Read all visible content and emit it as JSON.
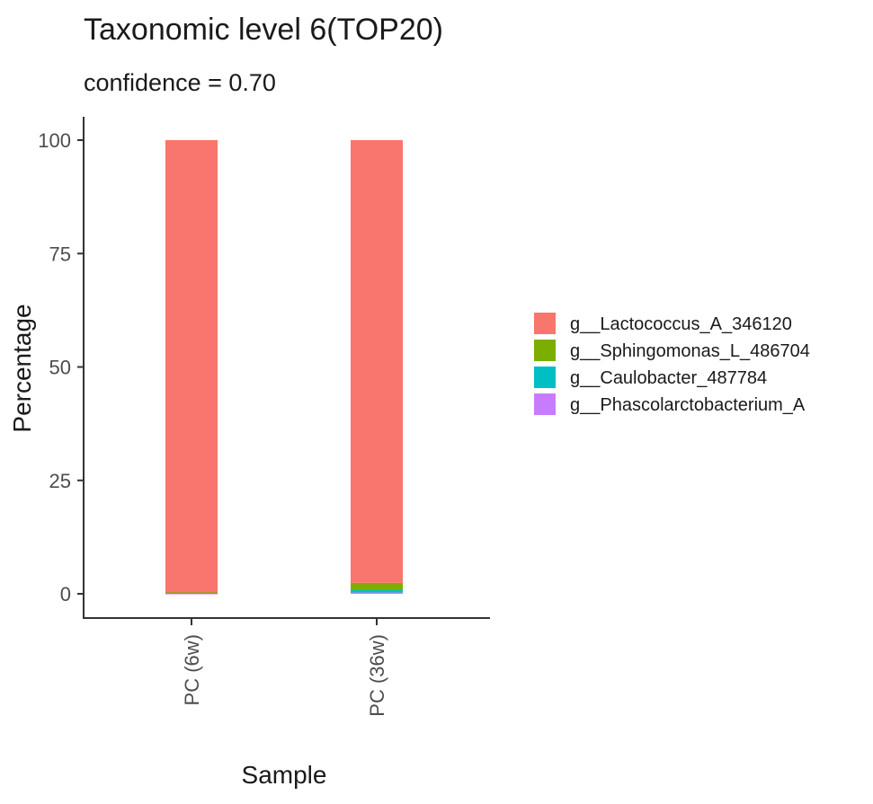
{
  "chart_data": {
    "type": "bar",
    "stacked": true,
    "title": "Taxonomic level 6(TOP20)",
    "subtitle": "confidence = 0.70",
    "xlabel": "Sample",
    "ylabel": "Percentage",
    "ylim": [
      0,
      100
    ],
    "yticks": [
      0,
      25,
      50,
      75,
      100
    ],
    "grid": false,
    "legend_position": "right",
    "categories": [
      "PC (6w)",
      "PC (36w)"
    ],
    "series": [
      {
        "name": "g__Lactococcus_A_346120",
        "color": "#F8766D",
        "values": [
          99.7,
          97.6
        ]
      },
      {
        "name": "g__Sphingomonas_L_486704",
        "color": "#7CAE00",
        "values": [
          0.1,
          1.6
        ]
      },
      {
        "name": "g__Caulobacter_487784",
        "color": "#00BFC4",
        "values": [
          0.1,
          0.5
        ]
      },
      {
        "name": "g__Phascolarctobacterium_A",
        "color": "#C77CFF",
        "values": [
          0.1,
          0.3
        ]
      }
    ]
  }
}
